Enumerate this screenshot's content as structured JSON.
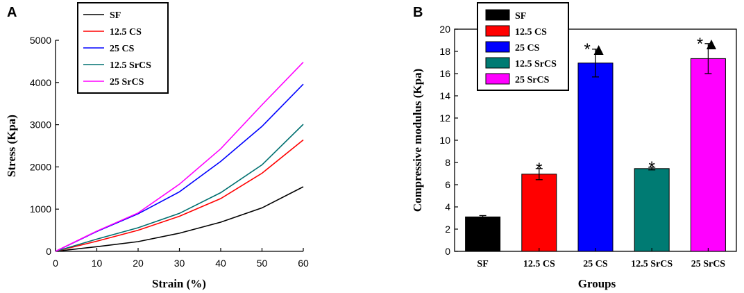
{
  "chart_data": [
    {
      "panel": "A",
      "type": "line",
      "xlabel": "Strain (%)",
      "ylabel": "Stress (Kpa)",
      "xlim": [
        0,
        60
      ],
      "ylim": [
        0,
        5000
      ],
      "xticks": [
        0,
        10,
        20,
        30,
        40,
        50,
        60
      ],
      "yticks": [
        0,
        1000,
        2000,
        3000,
        4000,
        5000
      ],
      "x": [
        0,
        10,
        20,
        30,
        40,
        50,
        60
      ],
      "series": [
        {
          "name": "SF",
          "color": "#000000",
          "values": [
            0,
            110,
            230,
            430,
            690,
            1030,
            1530
          ]
        },
        {
          "name": "12.5 CS",
          "color": "#ff0000",
          "values": [
            0,
            240,
            500,
            830,
            1250,
            1850,
            2640
          ]
        },
        {
          "name": "25 CS",
          "color": "#0000ff",
          "values": [
            0,
            470,
            890,
            1410,
            2130,
            2960,
            3960
          ]
        },
        {
          "name": "12.5 SrCS",
          "color": "#007070",
          "values": [
            0,
            290,
            560,
            900,
            1390,
            2050,
            3010
          ]
        },
        {
          "name": "25 SrCS",
          "color": "#ff00ff",
          "values": [
            0,
            480,
            910,
            1590,
            2430,
            3470,
            4480
          ]
        }
      ]
    },
    {
      "panel": "B",
      "type": "bar",
      "xlabel": "Groups",
      "ylabel": "Compressive modulus (Kpa)",
      "ylim": [
        0,
        20
      ],
      "yticks": [
        0,
        2,
        4,
        6,
        8,
        10,
        12,
        14,
        16,
        18,
        20
      ],
      "categories": [
        "SF",
        "12.5 CS",
        "25 CS",
        "12.5 SrCS",
        "25 SrCS"
      ],
      "values": [
        3.1,
        6.95,
        16.95,
        7.45,
        17.35
      ],
      "errors": [
        0.12,
        0.5,
        1.25,
        0.12,
        1.35
      ],
      "colors": [
        "#000000",
        "#ff0000",
        "#0000ff",
        "#007b73",
        "#ff00ff"
      ],
      "annotations": [
        "",
        "*",
        "*▲",
        "*",
        "*▲"
      ],
      "legend": [
        "SF",
        "12.5 CS",
        "25 CS",
        "12.5 SrCS",
        "25 SrCS"
      ]
    }
  ]
}
